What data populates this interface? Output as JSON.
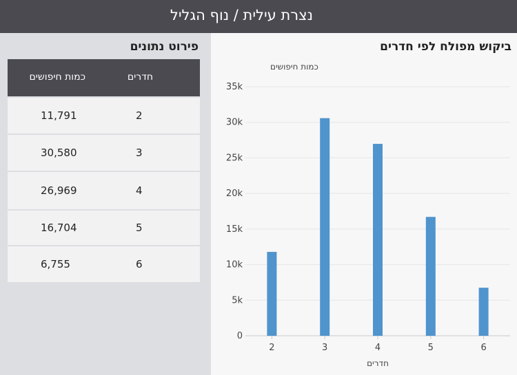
{
  "header": {
    "title": "נצרת עילית / נוף הגליל"
  },
  "chart_section": {
    "title": "ביקוש מפולח לפי חדרים"
  },
  "table_section": {
    "title": "פירוט נתונים",
    "columns": [
      "חדרים",
      "כמות חיפושים"
    ],
    "rows": [
      [
        "2",
        "11,791"
      ],
      [
        "3",
        "30,580"
      ],
      [
        "4",
        "26,969"
      ],
      [
        "5",
        "16,704"
      ],
      [
        "6",
        "6,755"
      ]
    ]
  },
  "chart_data": {
    "type": "bar",
    "categories": [
      "2",
      "3",
      "4",
      "5",
      "6"
    ],
    "values": [
      11791,
      30580,
      26969,
      16704,
      6755
    ],
    "xlabel": "חדרים",
    "ylabel": "כמות חיפושים",
    "ylim": [
      0,
      35000
    ],
    "yticks": [
      "0",
      "5k",
      "10k",
      "15k",
      "20k",
      "25k",
      "30k",
      "35k"
    ],
    "grid": true,
    "colors": {
      "bar": "#4f94cd"
    }
  }
}
